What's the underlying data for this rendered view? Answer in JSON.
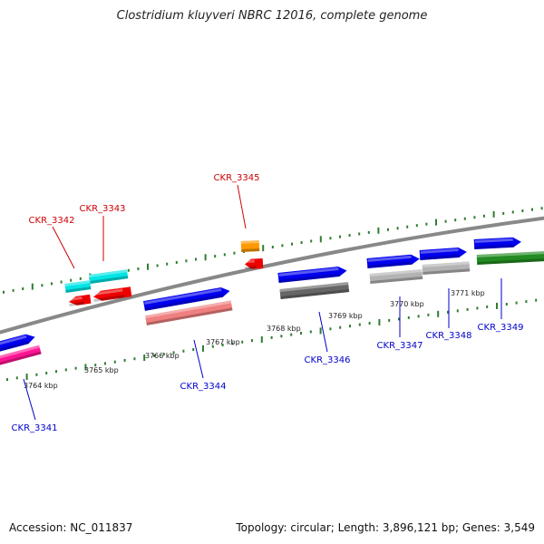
{
  "title": "Clostridium kluyveri NBRC 12016, complete genome",
  "footer": {
    "accession": "Accession: NC_011837",
    "summary": "Topology: circular; Length: 3,896,121 bp; Genes: 3,549"
  },
  "ticks": [
    {
      "label": "3764 kbp"
    },
    {
      "label": "3765 kbp"
    },
    {
      "label": "3766 kbp"
    },
    {
      "label": "3767 kbp"
    },
    {
      "label": "3768 kbp"
    },
    {
      "label": "3769 kbp"
    },
    {
      "label": "3770 kbp"
    },
    {
      "label": "3771 kbp"
    }
  ],
  "genes": [
    {
      "id": "CKR_3341",
      "strand": "forward",
      "color": "#ff1493"
    },
    {
      "id": "CKR_3342",
      "strand": "reverse",
      "color": "#00e5e5"
    },
    {
      "id": "CKR_3343",
      "strand": "reverse",
      "color": "#00e5e5"
    },
    {
      "id": "CKR_3344",
      "strand": "forward",
      "color": "#f08080"
    },
    {
      "id": "CKR_3345",
      "strand": "reverse",
      "color": "#ff9900"
    },
    {
      "id": "CKR_3346",
      "strand": "forward",
      "color": "#666666"
    },
    {
      "id": "CKR_3347",
      "strand": "forward",
      "color": "#b3b3b3"
    },
    {
      "id": "CKR_3348",
      "strand": "forward",
      "color": "#b3b3b3"
    },
    {
      "id": "CKR_3349",
      "strand": "forward",
      "color": "#228b22"
    }
  ],
  "colors": {
    "forward_label": "#0000cc",
    "reverse_label": "#cc0000",
    "cds_arrow": "#0000ee",
    "reverse_cds_arrow": "#ee0000",
    "backbone": "#888888",
    "tick": "#2e7d32"
  }
}
